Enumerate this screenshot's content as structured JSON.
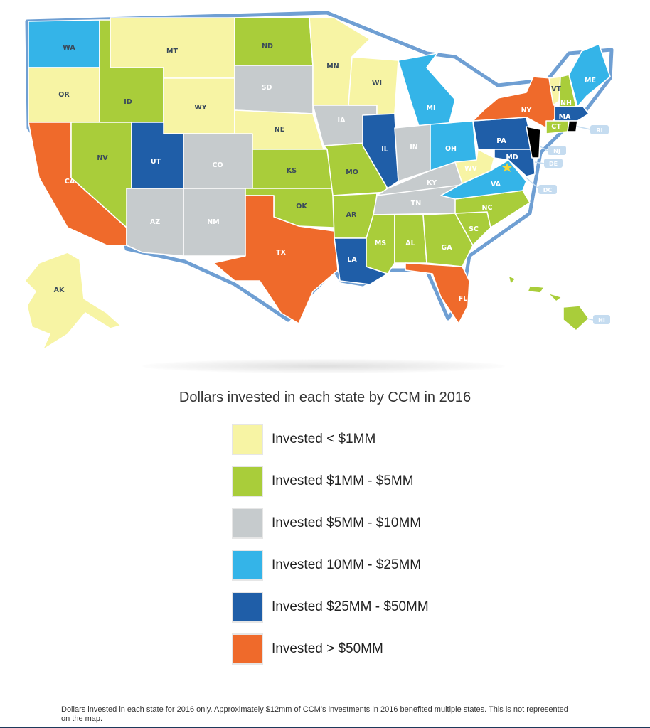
{
  "title": "Dollars invested in each state by CCM in 2016",
  "footnote": "Dollars invested in each state for 2016 only.  Approximately $12mm of CCM’s investments in 2016 benefited multiple states. This is not represented on the map.",
  "colors": {
    "lt1": "#f7f4a4",
    "1to5": "#a9cd3a",
    "5to10": "#c6cbcd",
    "10to25": "#34b4e8",
    "25to50": "#1f5ea8",
    "gt50": "#ef6a2b",
    "outline": "#6f9fd3"
  },
  "legend": [
    {
      "label": "Invested < $1MM",
      "category": "lt1"
    },
    {
      "label": "Invested $1MM - $5MM",
      "category": "1to5"
    },
    {
      "label": "Invested $5MM - $10MM",
      "category": "5to10"
    },
    {
      "label": "Invested 10MM - $25MM",
      "category": "10to25"
    },
    {
      "label": "Invested $25MM - $50MM",
      "category": "25to50"
    },
    {
      "label": "Invested > $50MM",
      "category": "gt50"
    }
  ],
  "states": {
    "WA": "10to25",
    "OR": "lt1",
    "CA": "gt50",
    "ID": "1to5",
    "NV": "1to5",
    "MT": "lt1",
    "WY": "lt1",
    "UT": "25to50",
    "AZ": "5to10",
    "CO": "5to10",
    "NM": "5to10",
    "ND": "1to5",
    "SD": "5to10",
    "NE": "lt1",
    "KS": "1to5",
    "OK": "1to5",
    "TX": "gt50",
    "MN": "lt1",
    "IA": "5to10",
    "MO": "1to5",
    "AR": "1to5",
    "LA": "25to50",
    "WI": "lt1",
    "IL": "25to50",
    "MI": "10to25",
    "IN": "5to10",
    "OH": "10to25",
    "KY": "5to10",
    "TN": "5to10",
    "MS": "1to5",
    "AL": "1to5",
    "GA": "1to5",
    "FL": "gt50",
    "SC": "1to5",
    "NC": "1to5",
    "VA": "10to25",
    "WV": "lt1",
    "PA": "25to50",
    "NY": "gt50",
    "VT": "lt1",
    "NH": "1to5",
    "ME": "10to25",
    "MA": "25to50",
    "CT": "1to5",
    "MD": "25to50",
    "AK": "lt1",
    "HI": "1to5"
  },
  "callouts": [
    "RI",
    "NJ",
    "DE",
    "DC",
    "HI"
  ]
}
